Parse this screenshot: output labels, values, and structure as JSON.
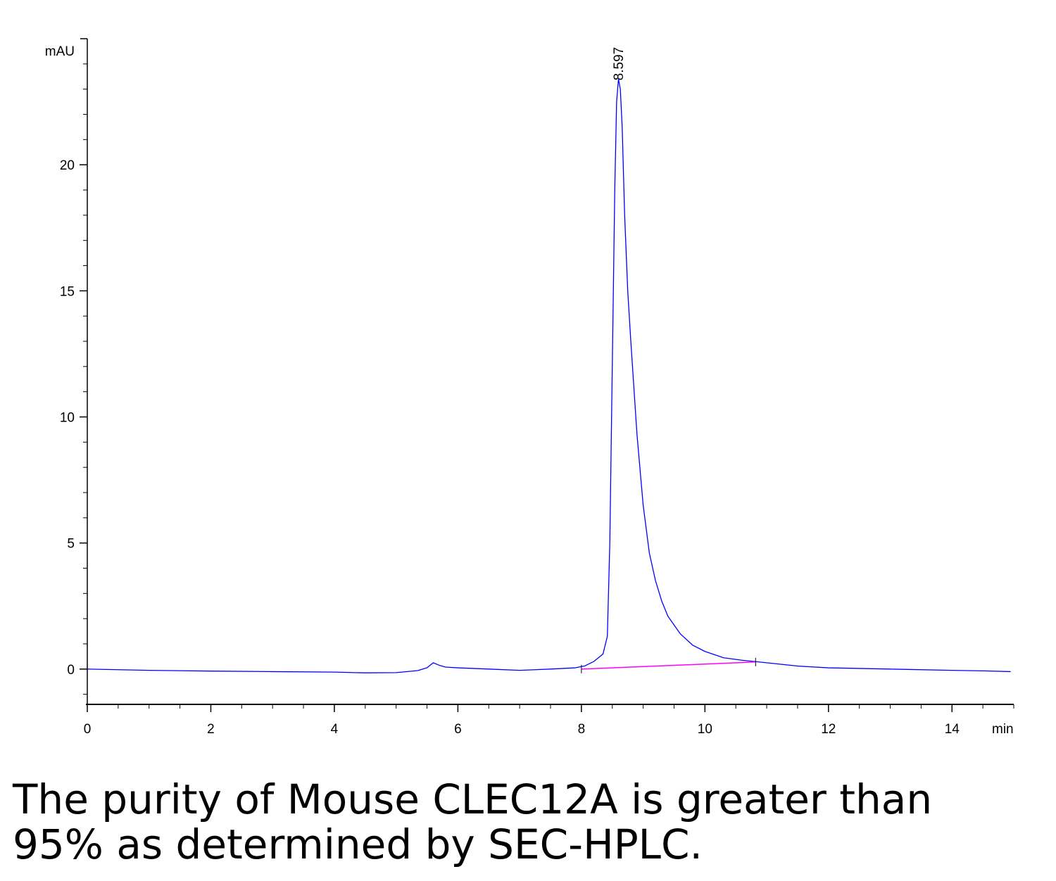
{
  "chart_data": {
    "type": "line",
    "title": "",
    "xlabel": "min",
    "ylabel": "mAU",
    "xlim": [
      0,
      15
    ],
    "ylim": [
      -1.4,
      25.0
    ],
    "x_ticks": [
      0,
      2,
      4,
      6,
      8,
      10,
      12,
      14
    ],
    "y_ticks": [
      0,
      5,
      10,
      15,
      20
    ],
    "grid": false,
    "legend": "none",
    "series": [
      {
        "color": "#0000ff",
        "x": [
          0,
          1,
          2,
          3,
          4,
          4.5,
          5.0,
          5.35,
          5.5,
          5.6,
          5.7,
          5.8,
          6.0,
          6.5,
          7.0,
          7.5,
          7.9,
          8.05,
          8.2,
          8.35,
          8.42,
          8.46,
          8.5,
          8.54,
          8.57,
          8.6,
          8.63,
          8.66,
          8.7,
          8.75,
          8.8,
          8.9,
          9.0,
          9.1,
          9.2,
          9.3,
          9.4,
          9.6,
          9.8,
          10.0,
          10.3,
          10.6,
          11.0,
          11.5,
          12.0,
          13.0,
          14.0,
          14.5,
          14.95
        ],
        "y": [
          0.0,
          -0.05,
          -0.08,
          -0.1,
          -0.12,
          -0.15,
          -0.14,
          -0.06,
          0.05,
          0.25,
          0.15,
          0.08,
          0.05,
          0.0,
          -0.05,
          0.0,
          0.05,
          0.12,
          0.3,
          0.6,
          1.3,
          5.0,
          12.0,
          19.0,
          22.5,
          23.4,
          23.0,
          21.5,
          18.0,
          15.0,
          13.0,
          9.3,
          6.5,
          4.6,
          3.5,
          2.7,
          2.1,
          1.4,
          0.95,
          0.7,
          0.45,
          0.35,
          0.25,
          0.12,
          0.05,
          0.0,
          -0.05,
          -0.07,
          -0.1
        ]
      },
      {
        "color": "#ff00ff",
        "x": [
          8.0,
          10.82
        ],
        "y": [
          0.0,
          0.28
        ]
      }
    ],
    "peak_label": {
      "text": "8.597",
      "x": 8.597
    },
    "integration_marks": [
      8.0,
      10.82
    ]
  },
  "caption": {
    "line1": "The purity of Mouse CLEC12A is greater than",
    "line2": "95% as determined by SEC-HPLC."
  }
}
